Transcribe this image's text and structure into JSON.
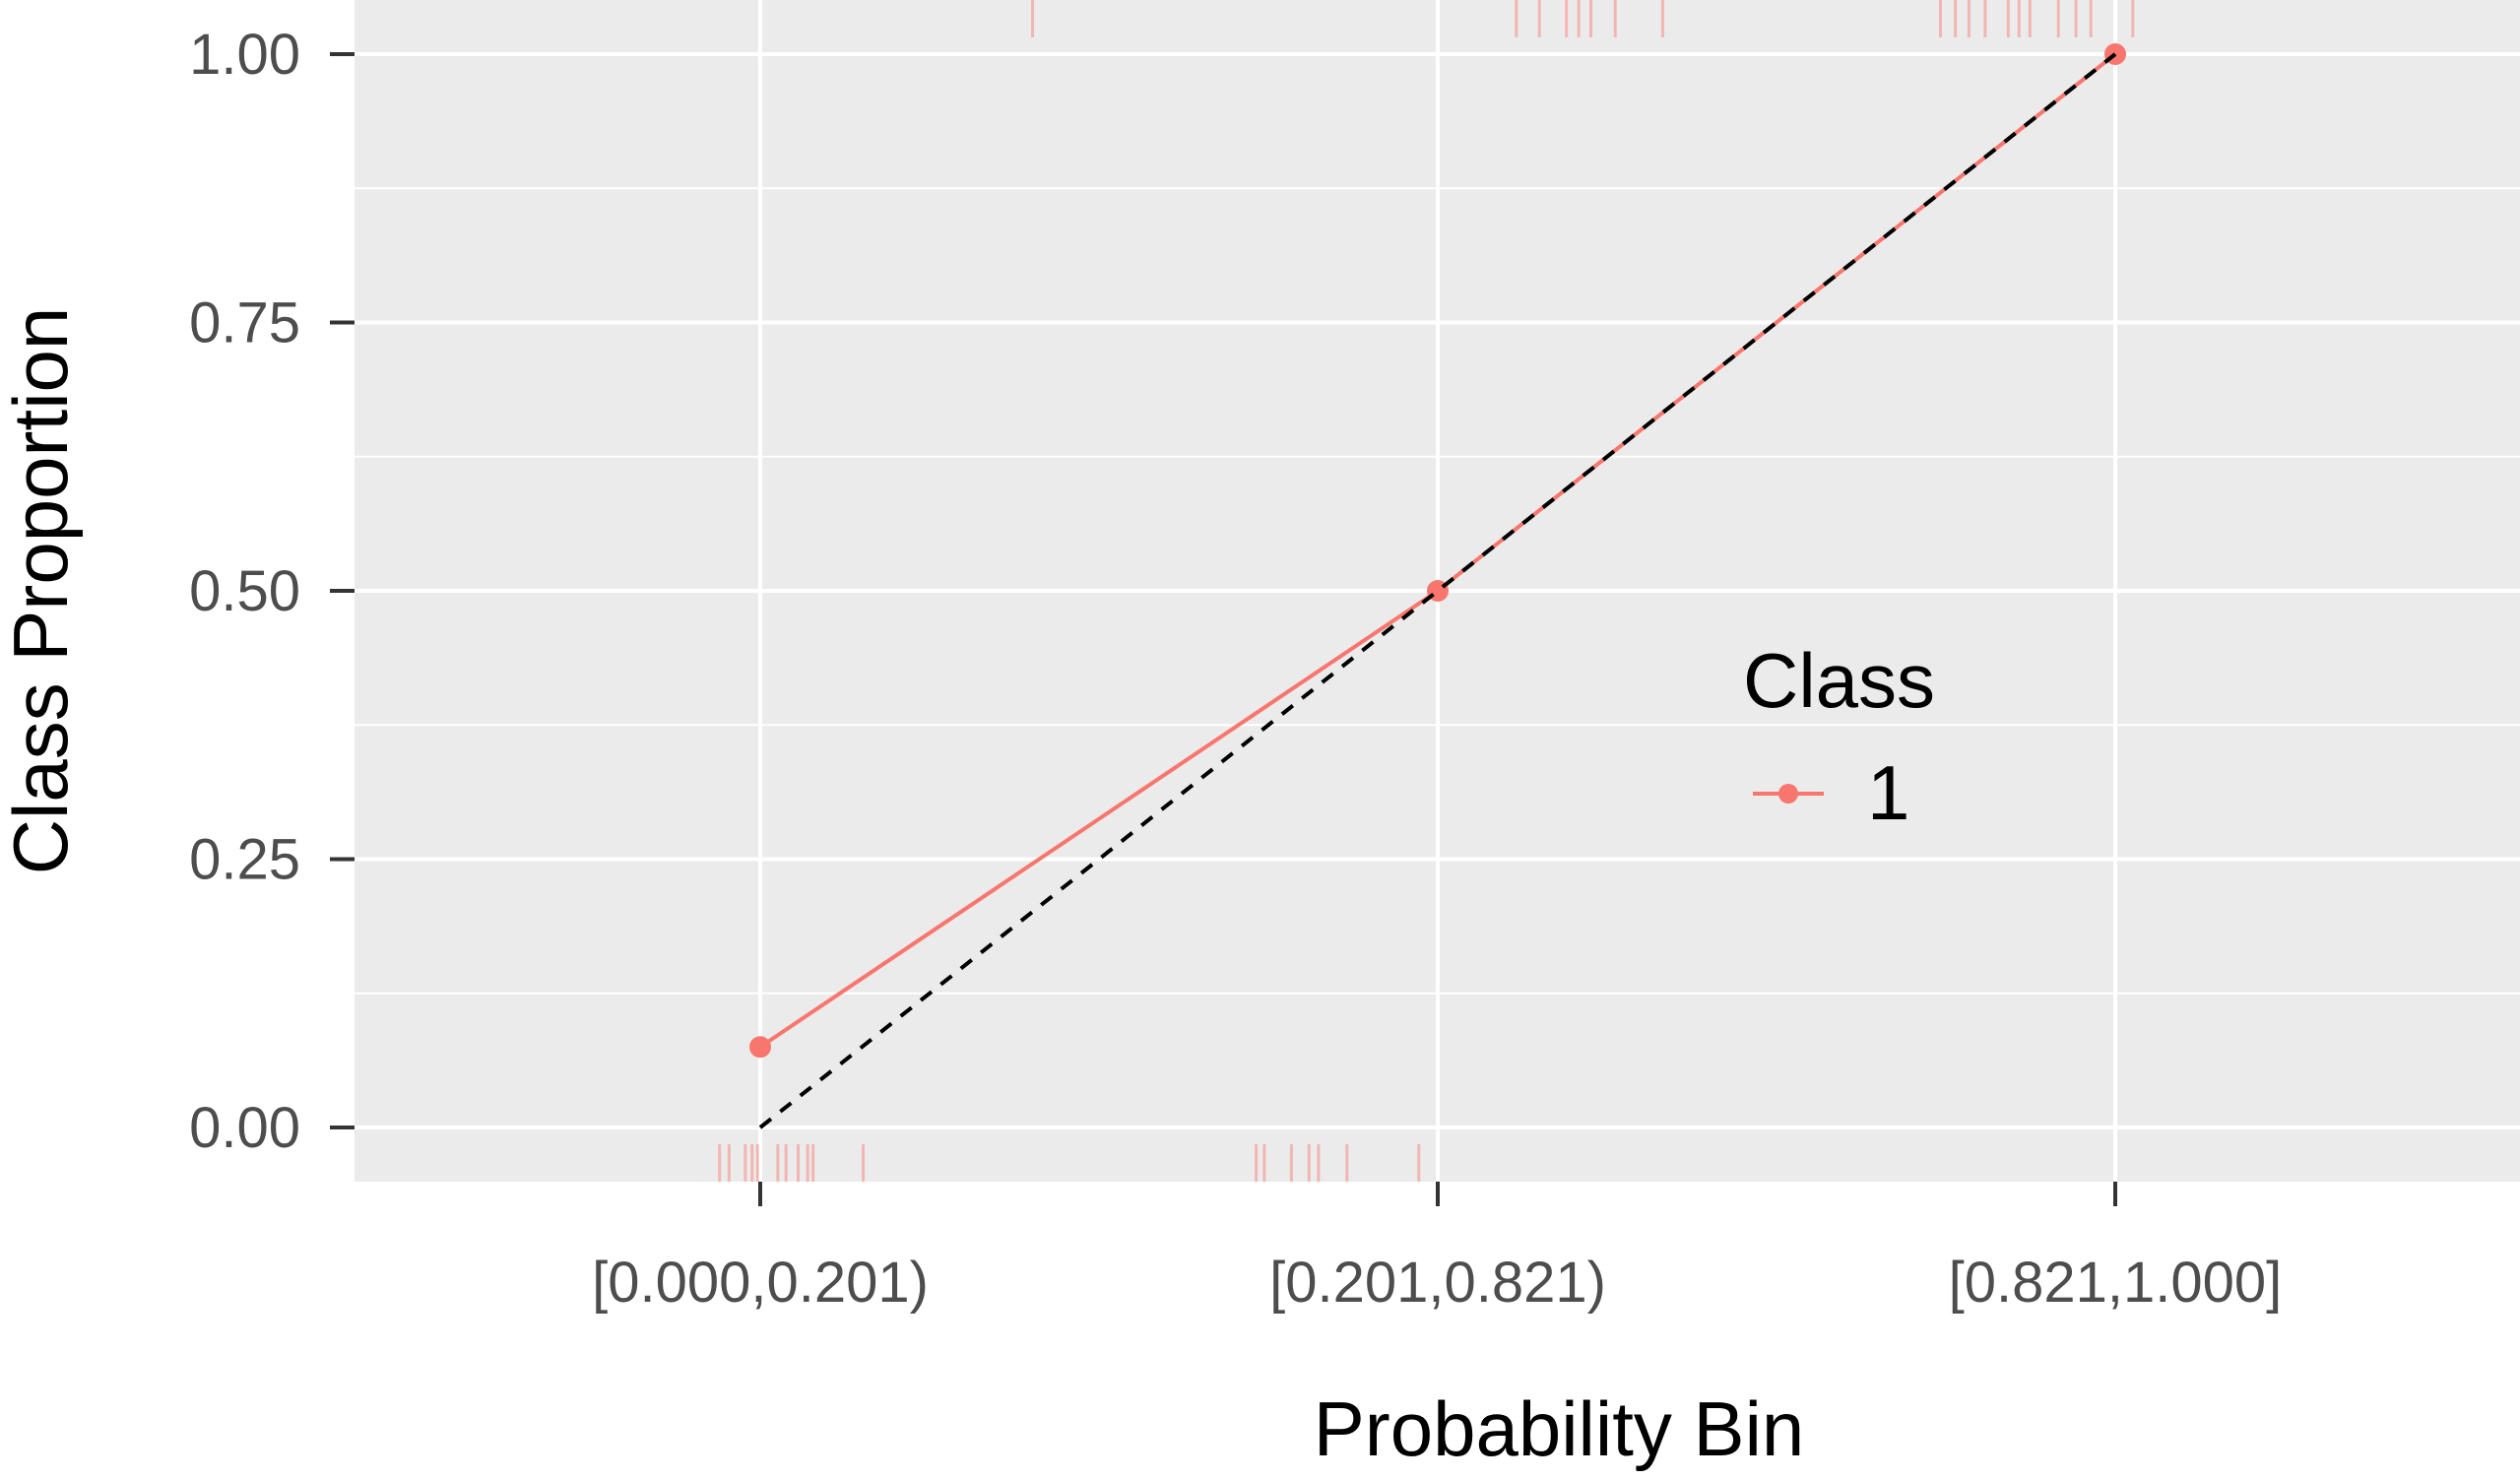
{
  "chart_data": {
    "type": "line",
    "xlabel": "Probability Bin",
    "ylabel": "Class Proportion",
    "categories": [
      "[0.000,0.201)",
      "[0.201,0.821)",
      "[0.821,1.000]"
    ],
    "series": [
      {
        "name": "1",
        "values": [
          0.075,
          0.5,
          1.0
        ]
      }
    ],
    "reference_line": {
      "style": "dashed",
      "color": "#000000",
      "values": [
        0.0,
        0.5,
        1.0
      ]
    },
    "ylim": [
      -0.05,
      1.05
    ],
    "yticks": [
      {
        "value": 0.0,
        "label": "0.00"
      },
      {
        "value": 0.25,
        "label": "0.25"
      },
      {
        "value": 0.5,
        "label": "0.50"
      },
      {
        "value": 0.75,
        "label": "0.75"
      },
      {
        "value": 1.0,
        "label": "1.00"
      }
    ],
    "rug_top": [
      0.201,
      0.558,
      0.575,
      0.595,
      0.604,
      0.613,
      0.631,
      0.666,
      0.871,
      0.882,
      0.892,
      0.904,
      0.921,
      0.929,
      0.937,
      0.958,
      0.971,
      0.982,
      1.013
    ],
    "rug_bottom": [
      -0.03,
      -0.023,
      -0.011,
      -0.006,
      -0.002,
      0.013,
      0.019,
      0.028,
      0.035,
      0.039,
      0.076,
      0.366,
      0.372,
      0.392,
      0.405,
      0.412,
      0.433,
      0.486
    ],
    "grid": true,
    "legend": {
      "title": "Class",
      "position": "right"
    },
    "colors": {
      "series": "#f8766d",
      "panel": "#ebebeb",
      "grid": "#ffffff",
      "reference": "#000000"
    }
  }
}
